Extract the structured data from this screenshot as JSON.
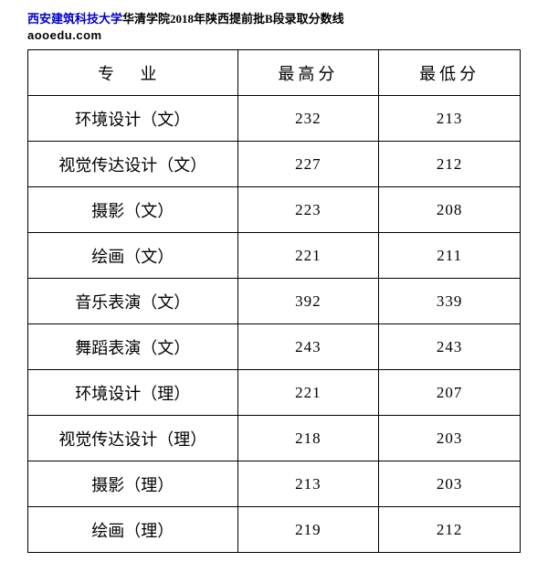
{
  "header": {
    "link_text": "西安建筑科技大学",
    "rest_text": "华清学院2018年陕西提前批B段录取分数线",
    "watermark": "aooedu.com"
  },
  "table": {
    "columns": [
      "专 业",
      "最高分",
      "最低分"
    ],
    "rows": [
      {
        "major": "环境设计（文）",
        "high": "232",
        "low": "213"
      },
      {
        "major": "视觉传达设计（文）",
        "high": "227",
        "low": "212"
      },
      {
        "major": "摄影（文）",
        "high": "223",
        "low": "208"
      },
      {
        "major": "绘画（文）",
        "high": "221",
        "low": "211"
      },
      {
        "major": "音乐表演（文）",
        "high": "392",
        "low": "339"
      },
      {
        "major": "舞蹈表演（文）",
        "high": "243",
        "low": "243"
      },
      {
        "major": "环境设计（理）",
        "high": "221",
        "low": "207"
      },
      {
        "major": "视觉传达设计（理）",
        "high": "218",
        "low": "203"
      },
      {
        "major": "摄影（理）",
        "high": "213",
        "low": "203"
      },
      {
        "major": "绘画（理）",
        "high": "219",
        "low": "212"
      }
    ],
    "border_color": "#000000",
    "background_color": "#ffffff",
    "header_fontsize": 18,
    "cell_fontsize": 18,
    "score_fontsize": 17
  }
}
